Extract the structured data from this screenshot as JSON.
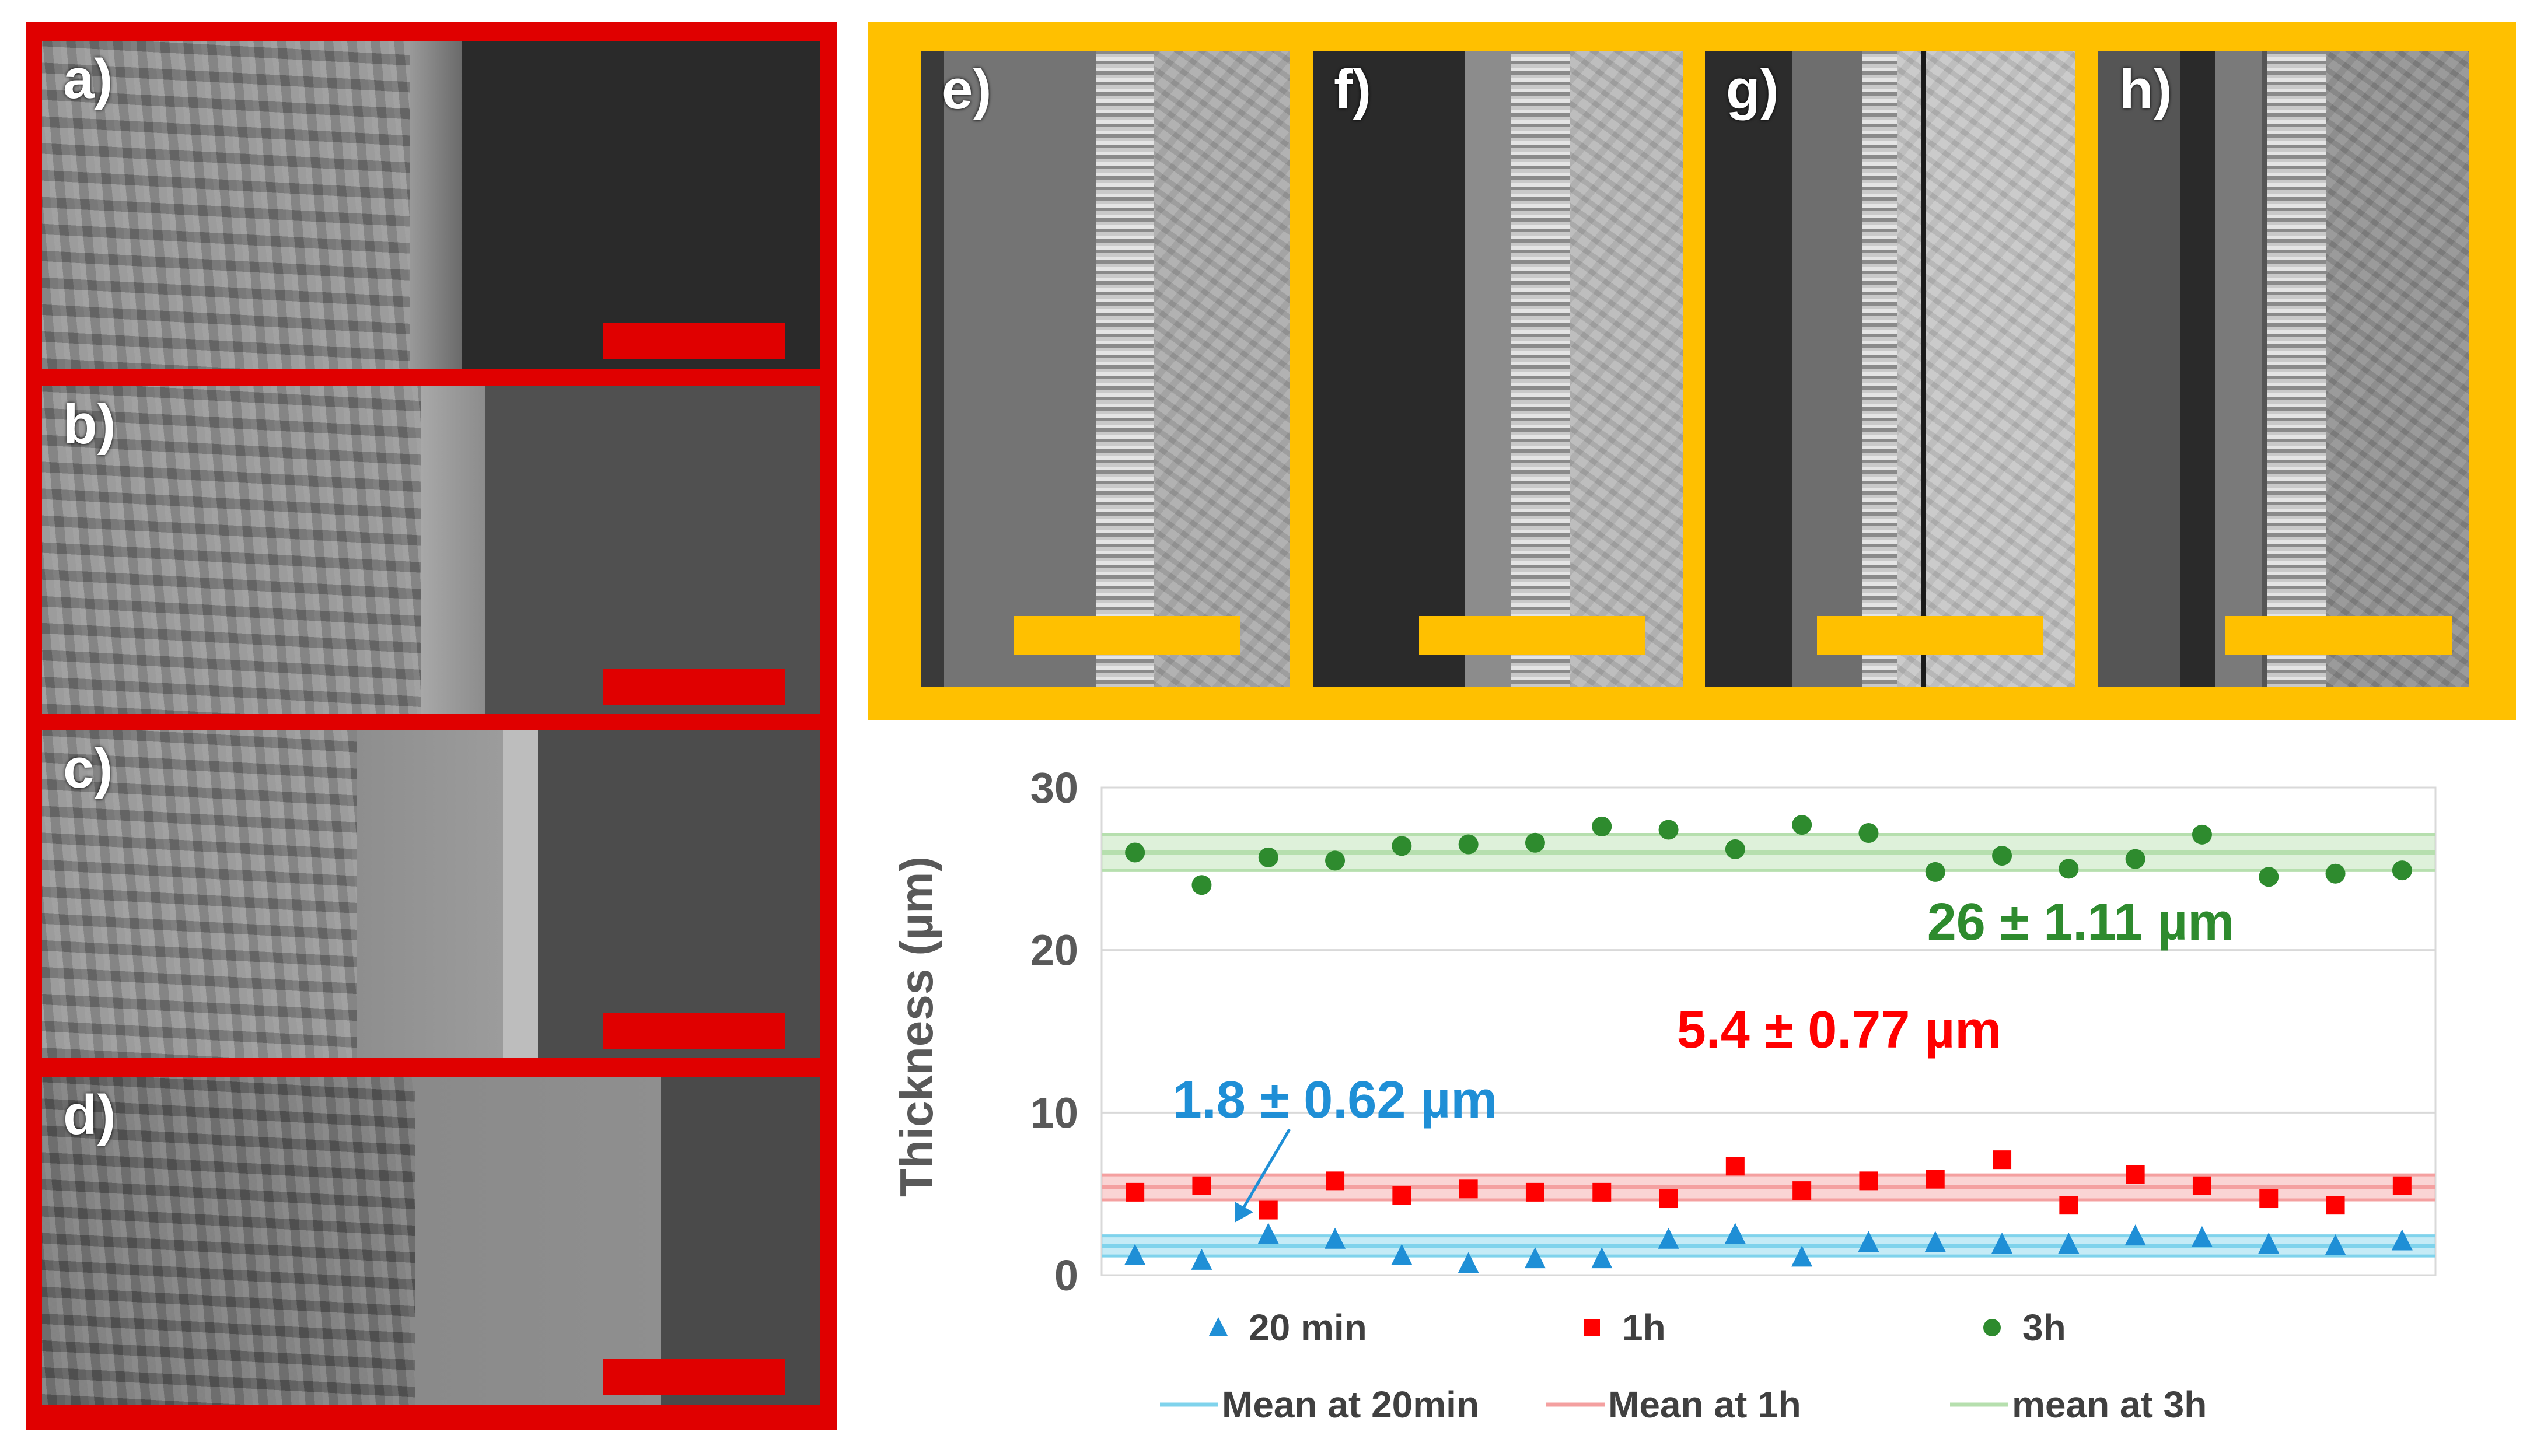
{
  "panels": {
    "red": [
      {
        "label": "a)"
      },
      {
        "label": "b)"
      },
      {
        "label": "c)"
      },
      {
        "label": "d)"
      }
    ],
    "orange": [
      {
        "label": "e)"
      },
      {
        "label": "f)"
      },
      {
        "label": "g)"
      },
      {
        "label": "h)"
      }
    ]
  },
  "colors": {
    "red_frame": "#e00000",
    "orange_frame": "#ffc000",
    "series_20min": "#1f8fd6",
    "series_1h": "#ff0000",
    "series_3h": "#2e8b2e",
    "mean_20min": "#7fd3ec",
    "mean_1h": "#f4a0a0",
    "mean_3h": "#b6dfae"
  },
  "chart_data": {
    "type": "scatter",
    "ylabel": "Thickness (µm)",
    "xlabel": "",
    "ylim": [
      0,
      30
    ],
    "yticks": [
      "0",
      "10",
      "20",
      "30"
    ],
    "grid": true,
    "legend_position": "bottom",
    "x": [
      1,
      2,
      3,
      4,
      5,
      6,
      7,
      8,
      9,
      10,
      11,
      12,
      13,
      14,
      15,
      16,
      17,
      18,
      19,
      20
    ],
    "series": [
      {
        "name": "20 min",
        "marker": "triangle",
        "values": [
          1.2,
          0.9,
          2.5,
          2.2,
          1.2,
          0.7,
          1.0,
          1.0,
          2.2,
          2.5,
          1.1,
          2.0,
          2.0,
          1.9,
          1.9,
          2.4,
          2.3,
          1.9,
          1.8,
          2.1
        ]
      },
      {
        "name": "1h",
        "marker": "square",
        "values": [
          5.1,
          5.5,
          4.0,
          5.8,
          4.9,
          5.3,
          5.1,
          5.1,
          4.7,
          6.7,
          5.2,
          5.8,
          5.9,
          7.1,
          4.3,
          6.2,
          5.5,
          4.7,
          4.3,
          5.5
        ]
      },
      {
        "name": "3h",
        "marker": "circle",
        "values": [
          26.0,
          24.0,
          25.7,
          25.5,
          26.4,
          26.5,
          26.6,
          27.6,
          27.4,
          26.2,
          27.7,
          27.2,
          24.8,
          25.8,
          25.0,
          25.6,
          27.1,
          24.5,
          24.7,
          24.9
        ]
      }
    ],
    "means": [
      {
        "name": "Mean at 20min",
        "value": 1.8,
        "sd": 0.62
      },
      {
        "name": "Mean at 1h",
        "value": 5.4,
        "sd": 0.77
      },
      {
        "name": "mean at 3h",
        "value": 26,
        "sd": 1.11
      }
    ],
    "annotations": {
      "a20": "1.8 ± 0.62 µm",
      "a1h": "5.4 ± 0.77 µm",
      "a3h": "26 ± 1.11 µm"
    }
  }
}
